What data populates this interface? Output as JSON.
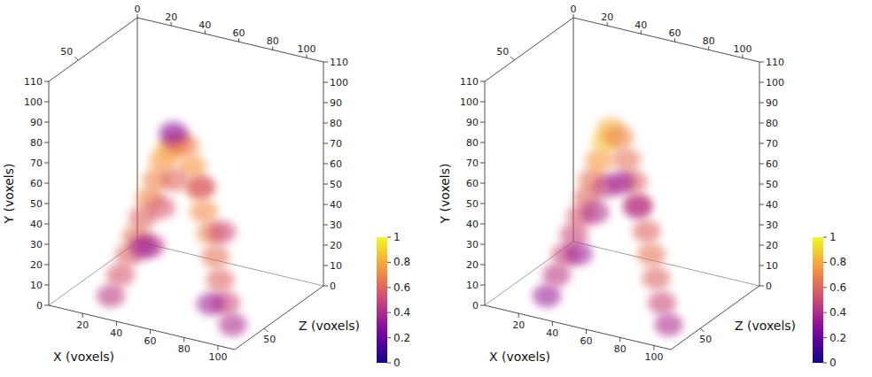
{
  "chart_data": [
    {
      "type": "volume",
      "xlabel": "X (voxels)",
      "ylabel": "Y (voxels)",
      "zlabel": "Z (voxels)",
      "xlim": [
        0,
        110
      ],
      "xticks": [
        20,
        40,
        60,
        80,
        100
      ],
      "top_xticks": [
        0,
        20,
        40,
        60,
        80,
        100
      ],
      "ylim": [
        0,
        110
      ],
      "yticks": [
        0,
        10,
        20,
        30,
        40,
        50,
        60,
        70,
        80,
        90,
        100,
        110
      ],
      "zlim": [
        20,
        110
      ],
      "zticks": [
        50
      ],
      "colorbar": {
        "range": [
          0,
          1
        ],
        "ticks": [
          0,
          0.2,
          0.4,
          0.6,
          0.8,
          1
        ]
      },
      "points": {
        "x": [
          28,
          32,
          36,
          40,
          44,
          48,
          52,
          56,
          60,
          64,
          68,
          72,
          76,
          80,
          84,
          88,
          92,
          96,
          100,
          46,
          54,
          70,
          82,
          40,
          62,
          50,
          90
        ],
        "y": [
          5,
          15,
          25,
          35,
          45,
          55,
          65,
          75,
          82,
          86,
          84,
          75,
          65,
          55,
          45,
          35,
          25,
          15,
          5,
          45,
          60,
          60,
          40,
          25,
          90,
          35,
          15
        ],
        "z": [
          35,
          38,
          40,
          40,
          40,
          40,
          40,
          40,
          40,
          40,
          42,
          42,
          42,
          40,
          40,
          38,
          36,
          35,
          35,
          55,
          55,
          55,
          55,
          55,
          40,
          30,
          30
        ],
        "intensity": [
          0.45,
          0.55,
          0.6,
          0.65,
          0.6,
          0.7,
          0.7,
          0.75,
          0.8,
          0.6,
          0.7,
          0.75,
          0.7,
          0.72,
          0.7,
          0.65,
          0.6,
          0.5,
          0.4,
          0.55,
          0.6,
          0.55,
          0.5,
          0.45,
          0.3,
          0.35,
          0.35
        ]
      }
    },
    {
      "type": "volume",
      "xlabel": "X (voxels)",
      "ylabel": "Y (voxels)",
      "zlabel": "Z (voxels)",
      "xlim": [
        0,
        110
      ],
      "xticks": [
        20,
        40,
        60,
        80,
        100
      ],
      "top_xticks": [
        0,
        20,
        40,
        60,
        80,
        100
      ],
      "ylim": [
        0,
        110
      ],
      "yticks": [
        0,
        10,
        20,
        30,
        40,
        50,
        60,
        70,
        80,
        90,
        100,
        110
      ],
      "zlim": [
        20,
        110
      ],
      "zticks": [
        50
      ],
      "colorbar": {
        "range": [
          0,
          1
        ],
        "ticks": [
          0,
          0.2,
          0.4,
          0.6,
          0.8,
          1
        ]
      },
      "points": {
        "x": [
          28,
          32,
          36,
          40,
          44,
          48,
          52,
          56,
          60,
          63,
          67,
          71,
          75,
          79,
          84,
          88,
          92,
          96,
          100,
          42,
          50,
          60,
          35,
          70
        ],
        "y": [
          5,
          15,
          25,
          35,
          45,
          55,
          65,
          75,
          85,
          92,
          88,
          78,
          68,
          58,
          46,
          36,
          26,
          15,
          5,
          40,
          55,
          60,
          20,
          50
        ],
        "z": [
          35,
          38,
          40,
          42,
          42,
          42,
          40,
          40,
          40,
          40,
          42,
          42,
          42,
          40,
          40,
          38,
          36,
          35,
          35,
          60,
          58,
          55,
          55,
          55
        ],
        "intensity": [
          0.35,
          0.45,
          0.5,
          0.5,
          0.55,
          0.6,
          0.65,
          0.75,
          0.85,
          0.8,
          0.7,
          0.65,
          0.6,
          0.55,
          0.6,
          0.65,
          0.6,
          0.5,
          0.4,
          0.4,
          0.45,
          0.35,
          0.35,
          0.4
        ]
      }
    }
  ]
}
